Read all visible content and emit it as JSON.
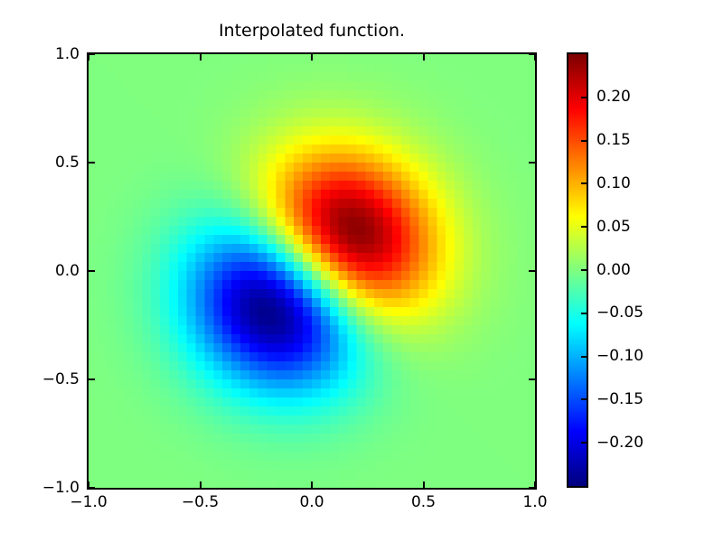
{
  "chart_data": {
    "type": "heatmap",
    "title": "Interpolated function.",
    "xlabel": "",
    "ylabel": "",
    "x_range": [
      -1.0,
      1.0
    ],
    "y_range": [
      -1.0,
      1.0
    ],
    "x_tick_values": [
      -1.0,
      -0.5,
      0.0,
      0.5,
      1.0
    ],
    "x_tick_labels": [
      "−1.0",
      "−0.5",
      "0.0",
      "0.5",
      "1.0"
    ],
    "y_tick_values": [
      1.0,
      0.5,
      0.0,
      -0.5,
      -1.0
    ],
    "y_tick_labels": [
      "1.0",
      "0.5",
      "0.0",
      "−0.5",
      "−1.0"
    ],
    "colormap": "jet",
    "value_range": [
      -0.25,
      0.25
    ],
    "grid_shape": [
      48,
      50
    ],
    "expression": "(x+y)*Math.exp(-6.25*(x*x+y*y))",
    "description": "Dipole interpolated field on [-1,1]^2: green background at 0, negative (blue) lobe centered near (-0.2,-0.2) with minimum about -0.24, positive (red) lobe centered near (0.2,0.2) with maximum about 0.24, zero-crossing band along the anti-diagonal x+y=0",
    "peaks": [
      {
        "x": 0.2,
        "y": 0.2,
        "value": 0.243
      },
      {
        "x": -0.2,
        "y": -0.2,
        "value": -0.243
      }
    ],
    "colorbar": {
      "tick_values": [
        0.2,
        0.15,
        0.1,
        0.05,
        0.0,
        -0.05,
        -0.1,
        -0.15,
        -0.2
      ],
      "tick_labels": [
        "0.20",
        "0.15",
        "0.10",
        "0.05",
        "0.00",
        "−0.05",
        "−0.10",
        "−0.15",
        "−0.20"
      ],
      "orientation": "vertical",
      "position": "right"
    },
    "grid_on": false,
    "legend": null
  }
}
